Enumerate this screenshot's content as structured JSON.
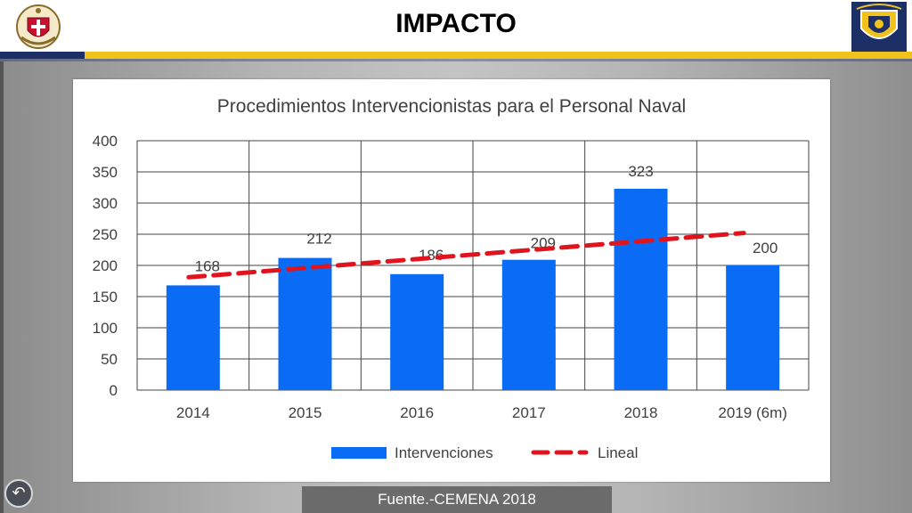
{
  "page": {
    "title": "IMPACTO",
    "source": "Fuente.-CEMENA 2018"
  },
  "icons": {
    "left_logo": "naval-health-crest-icon",
    "right_logo": "naval-shield-crest-icon",
    "back": "back-arrow-icon"
  },
  "colors": {
    "navy": "#1c2f66",
    "gold": "#f1c21b",
    "bar": "#0a6cf5",
    "trend": "#e0141e"
  },
  "chart_data": {
    "type": "bar",
    "title": "Procedimientos Intervencionistas para el Personal Naval",
    "categories": [
      "2014",
      "2015",
      "2016",
      "2017",
      "2018",
      "2019 (6m)"
    ],
    "series": [
      {
        "name": "Intervenciones",
        "values": [
          168,
          212,
          186,
          209,
          323,
          200
        ]
      }
    ],
    "trendline": {
      "name": "Lineal",
      "start": 181,
      "end": 252
    },
    "ylim": [
      0,
      400
    ],
    "yticks": [
      0,
      50,
      100,
      150,
      200,
      250,
      300,
      350,
      400
    ],
    "xlabel": "",
    "ylabel": "",
    "grid": true,
    "legend": "bottom"
  }
}
